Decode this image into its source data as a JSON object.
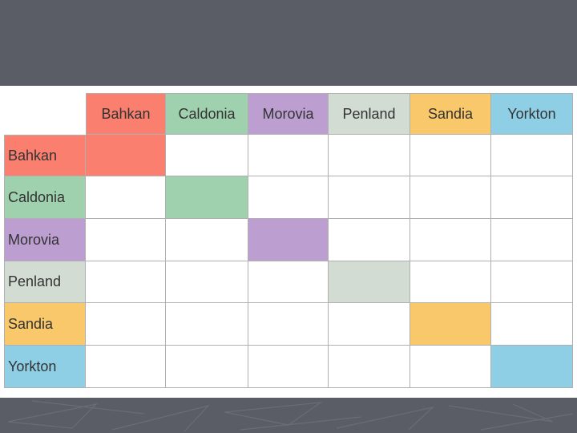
{
  "regions": [
    {
      "name": "Bahkan",
      "color": "#fa7f6e"
    },
    {
      "name": "Caldonia",
      "color": "#a0d1ae"
    },
    {
      "name": "Morovia",
      "color": "#bc9ed1"
    },
    {
      "name": "Penland",
      "color": "#d2dcd2"
    },
    {
      "name": "Sandia",
      "color": "#f9c86a"
    },
    {
      "name": "Yorkton",
      "color": "#8ecfe6"
    }
  ],
  "colors": {
    "background": "#5a5c66",
    "panel": "#ffffff",
    "grid_line": "#b0b0b0"
  },
  "highlight": "diagonal"
}
